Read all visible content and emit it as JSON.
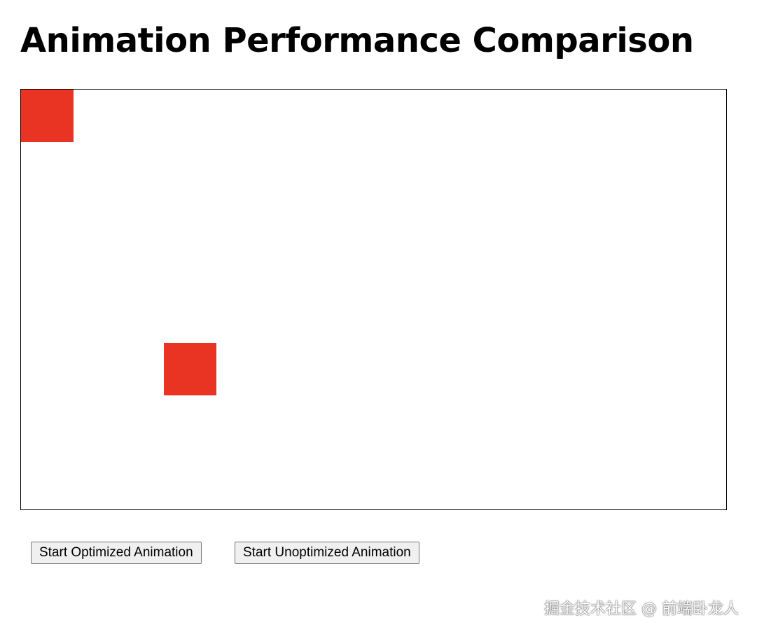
{
  "header": {
    "title": "Animation Performance Comparison"
  },
  "buttons": [
    "Start Optimized Animation",
    "Start Unoptimized Animation"
  ],
  "watermark": "掘金技术社区 @ 前端卧龙人"
}
